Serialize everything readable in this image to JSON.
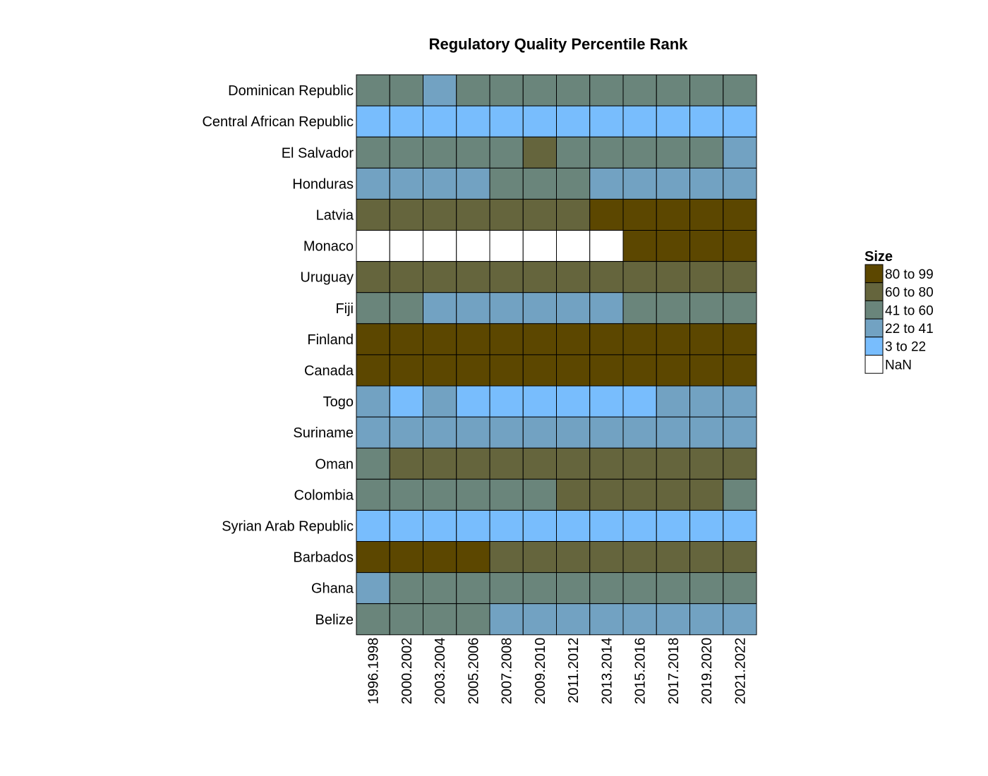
{
  "chart_data": {
    "type": "heatmap",
    "title": "Regulatory Quality Percentile Rank",
    "rows": [
      "Dominican Republic",
      "Central African Republic",
      "El Salvador",
      "Honduras",
      "Latvia",
      "Monaco",
      "Uruguay",
      "Fiji",
      "Finland",
      "Canada",
      "Togo",
      "Suriname",
      "Oman",
      "Colombia",
      "Syrian Arab Republic",
      "Barbados",
      "Ghana",
      "Belize"
    ],
    "columns": [
      "1996.1998",
      "2000.2002",
      "2003.2004",
      "2005.2006",
      "2007.2008",
      "2009.2010",
      "2011.2012",
      "2013.2014",
      "2015.2016",
      "2017.2018",
      "2019.2020",
      "2021.2022"
    ],
    "legend": {
      "title": "Size",
      "position": "right",
      "bins": [
        {
          "label": "80  to  99",
          "color": "#5c4700"
        },
        {
          "label": "60  to  80",
          "color": "#65653d"
        },
        {
          "label": "41  to  60",
          "color": "#6a857b"
        },
        {
          "label": "22  to  41",
          "color": "#72a2c2"
        },
        {
          "label": "3  to  22",
          "color": "#78bdfd"
        },
        {
          "label": "NaN",
          "color": "#ffffff"
        }
      ]
    },
    "cells": [
      [
        2,
        2,
        3,
        2,
        2,
        2,
        2,
        2,
        2,
        2,
        2,
        2
      ],
      [
        4,
        4,
        4,
        4,
        4,
        4,
        4,
        4,
        4,
        4,
        4,
        4
      ],
      [
        2,
        2,
        2,
        2,
        2,
        1,
        2,
        2,
        2,
        2,
        2,
        3
      ],
      [
        3,
        3,
        3,
        3,
        2,
        2,
        2,
        3,
        3,
        3,
        3,
        3
      ],
      [
        1,
        1,
        1,
        1,
        1,
        1,
        1,
        0,
        0,
        0,
        0,
        0
      ],
      [
        5,
        5,
        5,
        5,
        5,
        5,
        5,
        5,
        0,
        0,
        0,
        0
      ],
      [
        1,
        1,
        1,
        1,
        1,
        1,
        1,
        1,
        1,
        1,
        1,
        1
      ],
      [
        2,
        2,
        3,
        3,
        3,
        3,
        3,
        3,
        2,
        2,
        2,
        2
      ],
      [
        0,
        0,
        0,
        0,
        0,
        0,
        0,
        0,
        0,
        0,
        0,
        0
      ],
      [
        0,
        0,
        0,
        0,
        0,
        0,
        0,
        0,
        0,
        0,
        0,
        0
      ],
      [
        3,
        4,
        3,
        4,
        4,
        4,
        4,
        4,
        4,
        3,
        3,
        3
      ],
      [
        3,
        3,
        3,
        3,
        3,
        3,
        3,
        3,
        3,
        3,
        3,
        3
      ],
      [
        2,
        1,
        1,
        1,
        1,
        1,
        1,
        1,
        1,
        1,
        1,
        1
      ],
      [
        2,
        2,
        2,
        2,
        2,
        2,
        1,
        1,
        1,
        1,
        1,
        2
      ],
      [
        4,
        4,
        4,
        4,
        4,
        4,
        4,
        4,
        4,
        4,
        4,
        4
      ],
      [
        0,
        0,
        0,
        0,
        1,
        1,
        1,
        1,
        1,
        1,
        1,
        1
      ],
      [
        3,
        2,
        2,
        2,
        2,
        2,
        2,
        2,
        2,
        2,
        2,
        2
      ],
      [
        2,
        2,
        2,
        2,
        3,
        3,
        3,
        3,
        3,
        3,
        3,
        3
      ]
    ],
    "cell_encoding": "index into legend.bins"
  }
}
